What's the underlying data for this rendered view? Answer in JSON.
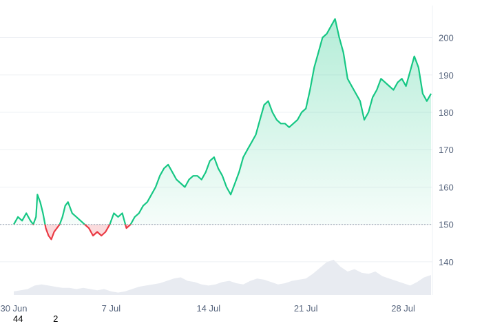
{
  "chart_data": {
    "type": "area",
    "baseline": 150,
    "ylim": [
      128,
      206
    ],
    "y_ticks": [
      140,
      150,
      160,
      170,
      180,
      190,
      200
    ],
    "x_ticks": [
      {
        "day": 0,
        "label": "30 Jun"
      },
      {
        "day": 7,
        "label": "7 Jul"
      },
      {
        "day": 14,
        "label": "14 Jul"
      },
      {
        "day": 21,
        "label": "21 Jul"
      },
      {
        "day": 28,
        "label": "28 Jul"
      }
    ],
    "xlim": [
      0,
      30.1
    ],
    "price_series": {
      "x": [
        0,
        0.3,
        0.6,
        0.9,
        1.2,
        1.4,
        1.6,
        1.7,
        1.9,
        2.1,
        2.3,
        2.5,
        2.7,
        2.9,
        3.1,
        3.3,
        3.5,
        3.7,
        3.9,
        4.2,
        4.5,
        4.8,
        5.1,
        5.4,
        5.7,
        6.0,
        6.3,
        6.6,
        6.9,
        7.2,
        7.5,
        7.8,
        8.1,
        8.4,
        8.7,
        9.0,
        9.3,
        9.6,
        9.9,
        10.2,
        10.5,
        10.8,
        11.1,
        11.4,
        11.7,
        12.0,
        12.3,
        12.6,
        12.9,
        13.2,
        13.5,
        13.8,
        14.1,
        14.4,
        14.7,
        15.0,
        15.3,
        15.6,
        15.9,
        16.2,
        16.5,
        16.8,
        17.1,
        17.4,
        17.7,
        18.0,
        18.3,
        18.6,
        18.9,
        19.2,
        19.5,
        19.8,
        20.1,
        20.4,
        20.7,
        21.0,
        21.3,
        21.6,
        21.9,
        22.2,
        22.5,
        22.8,
        23.1,
        23.4,
        23.7,
        24.0,
        24.3,
        24.6,
        24.9,
        25.2,
        25.5,
        25.8,
        26.1,
        26.4,
        26.7,
        27.0,
        27.3,
        27.6,
        27.9,
        28.2,
        28.5,
        28.8,
        29.1,
        29.4,
        29.7,
        30.0
      ],
      "y": [
        150,
        152,
        151,
        153,
        151,
        150,
        152,
        158,
        156,
        153,
        149,
        147,
        146,
        148,
        149,
        150,
        152,
        155,
        156,
        153,
        152,
        151,
        150,
        149,
        147,
        148,
        147,
        148,
        150,
        153,
        152,
        153,
        149,
        150,
        152,
        153,
        155,
        156,
        158,
        160,
        163,
        165,
        166,
        164,
        162,
        161,
        160,
        162,
        163,
        163,
        162,
        164,
        167,
        168,
        165,
        163,
        160,
        158,
        161,
        164,
        168,
        170,
        172,
        174,
        178,
        182,
        183,
        180,
        178,
        177,
        177,
        176,
        177,
        178,
        180,
        181,
        186,
        192,
        196,
        200,
        201,
        203,
        205,
        200,
        196,
        189,
        187,
        185,
        183,
        178,
        180,
        184,
        186,
        189,
        188,
        187,
        186,
        188,
        189,
        187,
        191,
        195,
        192,
        185,
        183,
        185
      ]
    },
    "volume_series": {
      "x": [
        0,
        0.5,
        1,
        1.5,
        2,
        2.5,
        3,
        3.5,
        4,
        4.5,
        5,
        5.5,
        6,
        6.5,
        7,
        7.5,
        8,
        8.5,
        9,
        9.5,
        10,
        10.5,
        11,
        11.5,
        12,
        12.5,
        13,
        13.5,
        14,
        14.5,
        15,
        15.5,
        16,
        16.5,
        17,
        17.5,
        18,
        18.5,
        19,
        19.5,
        20,
        20.5,
        21,
        21.5,
        22,
        22.5,
        23,
        23.5,
        24,
        24.5,
        25,
        25.5,
        26,
        26.5,
        27,
        27.5,
        28,
        28.5,
        29,
        29.5,
        30
      ],
      "y": [
        3,
        4,
        5,
        8,
        9,
        8,
        7,
        6,
        6,
        5,
        6,
        5,
        4,
        5,
        3,
        2,
        3,
        5,
        7,
        8,
        9,
        10,
        12,
        14,
        15,
        12,
        11,
        9,
        8,
        9,
        11,
        12,
        10,
        9,
        12,
        14,
        13,
        11,
        9,
        10,
        12,
        13,
        14,
        18,
        23,
        28,
        30,
        24,
        20,
        22,
        19,
        18,
        20,
        16,
        14,
        12,
        10,
        8,
        11,
        15,
        17
      ]
    },
    "line_color": "#16c784",
    "negative_color": "#ea3943",
    "volume_color": "#cfd6e4",
    "grid": true
  },
  "footer": {
    "value_a": "44",
    "value_b": "2"
  }
}
